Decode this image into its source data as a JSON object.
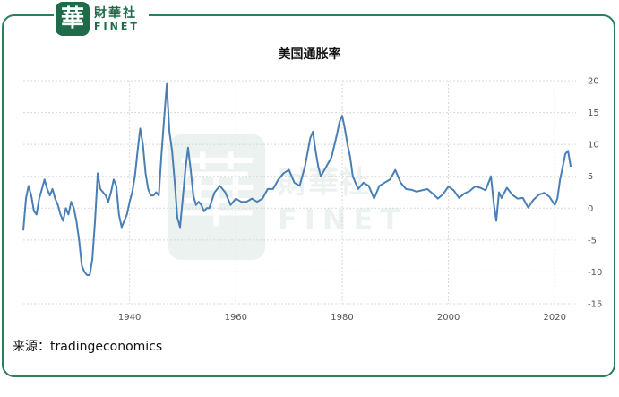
{
  "brand": {
    "logo_char": "華",
    "name_cn": "財華社",
    "name_en": "FINET"
  },
  "source_label": "来源：tradingeconomics",
  "colors": {
    "line": "#4a7fb5",
    "grid": "#d8d8d8",
    "brand": "#1e6b4a"
  },
  "chart_data": {
    "type": "line",
    "title": "美国通胀率",
    "xlabel": "",
    "ylabel": "",
    "xlim": [
      1920,
      2024
    ],
    "ylim": [
      -15,
      20
    ],
    "grid": true,
    "legend": "none",
    "x_ticks": [
      1940,
      1960,
      1980,
      2000,
      2020
    ],
    "y_ticks": [
      20,
      15,
      10,
      5,
      0,
      -5,
      -10,
      -15
    ],
    "x": [
      1920.0,
      1920.5,
      1921.0,
      1921.5,
      1922.0,
      1922.5,
      1923.0,
      1923.5,
      1924.0,
      1924.5,
      1925.0,
      1925.5,
      1926.0,
      1926.5,
      1927.0,
      1927.5,
      1928.0,
      1928.5,
      1929.0,
      1929.5,
      1930.0,
      1930.5,
      1931.0,
      1931.5,
      1932.0,
      1932.5,
      1933.0,
      1933.5,
      1934.0,
      1934.5,
      1935.0,
      1935.5,
      1936.0,
      1936.5,
      1937.0,
      1937.5,
      1938.0,
      1938.5,
      1939.0,
      1939.5,
      1940.0,
      1940.5,
      1941.0,
      1941.5,
      1942.0,
      1942.5,
      1943.0,
      1943.5,
      1944.0,
      1944.5,
      1945.0,
      1945.5,
      1946.0,
      1946.5,
      1947.0,
      1947.5,
      1948.0,
      1948.5,
      1949.0,
      1949.5,
      1950.0,
      1950.5,
      1951.0,
      1951.5,
      1952.0,
      1952.5,
      1953.0,
      1953.5,
      1954.0,
      1954.5,
      1955.0,
      1956.0,
      1957.0,
      1958.0,
      1959.0,
      1960.0,
      1961.0,
      1962.0,
      1963.0,
      1964.0,
      1965.0,
      1966.0,
      1967.0,
      1968.0,
      1969.0,
      1970.0,
      1971.0,
      1972.0,
      1973.0,
      1974.0,
      1974.5,
      1975.0,
      1975.5,
      1976.0,
      1977.0,
      1978.0,
      1979.0,
      1979.5,
      1980.0,
      1980.5,
      1981.0,
      1981.5,
      1982.0,
      1982.5,
      1983.0,
      1984.0,
      1985.0,
      1986.0,
      1987.0,
      1988.0,
      1989.0,
      1990.0,
      1991.0,
      1992.0,
      1993.0,
      1994.0,
      1995.0,
      1996.0,
      1997.0,
      1998.0,
      1999.0,
      2000.0,
      2001.0,
      2002.0,
      2003.0,
      2004.0,
      2005.0,
      2006.0,
      2007.0,
      2008.0,
      2008.5,
      2009.0,
      2009.5,
      2010.0,
      2011.0,
      2012.0,
      2013.0,
      2014.0,
      2015.0,
      2016.0,
      2017.0,
      2018.0,
      2019.0,
      2020.0,
      2020.5,
      2021.0,
      2021.5,
      2022.0,
      2022.5,
      2023.0
    ],
    "values": [
      -3.5,
      1.5,
      3.5,
      2.0,
      -0.5,
      -1.0,
      1.5,
      3.0,
      4.5,
      3.0,
      2.0,
      3.0,
      1.5,
      0.5,
      -1.0,
      -2.0,
      0.0,
      -1.0,
      1.0,
      0.0,
      -2.0,
      -5.0,
      -9.0,
      -10.0,
      -10.5,
      -10.5,
      -8.0,
      -2.0,
      5.5,
      3.0,
      2.5,
      2.0,
      1.0,
      2.5,
      4.5,
      3.5,
      -1.0,
      -3.0,
      -2.0,
      -1.0,
      1.0,
      2.5,
      5.0,
      9.0,
      12.5,
      10.0,
      5.5,
      3.0,
      2.0,
      2.0,
      2.5,
      2.0,
      8.5,
      14.0,
      19.5,
      12.0,
      9.0,
      4.0,
      -1.5,
      -3.0,
      1.5,
      6.0,
      9.5,
      6.0,
      2.0,
      0.5,
      1.0,
      0.5,
      -0.5,
      0.0,
      0.0,
      2.5,
      3.5,
      2.5,
      0.5,
      1.5,
      1.0,
      1.0,
      1.5,
      1.0,
      1.5,
      3.0,
      3.0,
      4.5,
      5.5,
      6.0,
      4.0,
      3.5,
      6.5,
      11.0,
      12.0,
      9.0,
      6.5,
      5.0,
      6.5,
      8.0,
      11.5,
      13.5,
      14.5,
      12.5,
      10.0,
      8.0,
      5.0,
      4.0,
      3.0,
      4.0,
      3.5,
      1.5,
      3.5,
      4.0,
      4.5,
      6.0,
      4.0,
      3.0,
      2.9,
      2.6,
      2.8,
      3.0,
      2.3,
      1.5,
      2.2,
      3.4,
      2.8,
      1.6,
      2.3,
      2.7,
      3.4,
      3.2,
      2.8,
      5.0,
      1.0,
      -2.0,
      2.5,
      1.6,
      3.2,
      2.1,
      1.5,
      1.6,
      0.1,
      1.3,
      2.1,
      2.4,
      1.8,
      0.5,
      1.5,
      4.5,
      6.5,
      8.5,
      9.0,
      6.5
    ]
  }
}
